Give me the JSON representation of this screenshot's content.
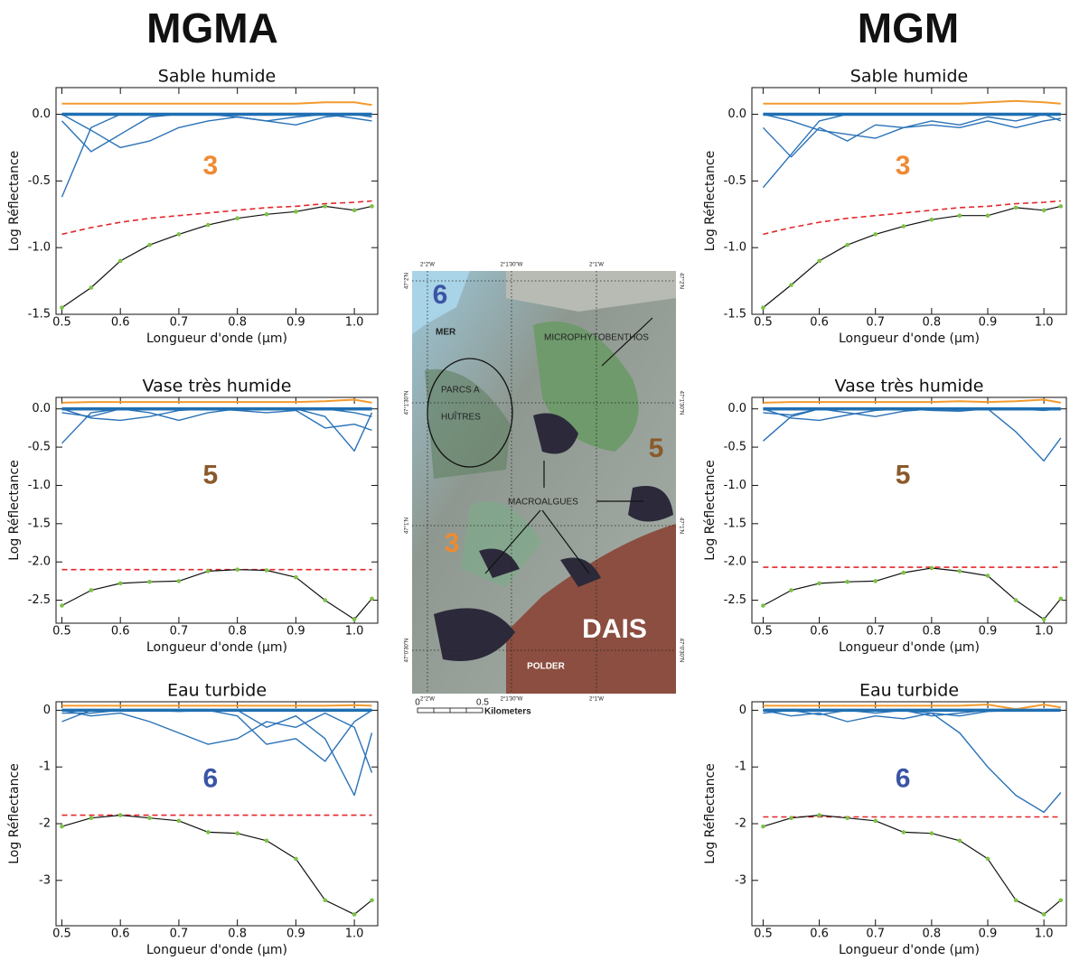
{
  "headings": [
    "MGMA",
    "MGM"
  ],
  "map": {
    "six": "6",
    "mer": "MER",
    "parcs": "PARCS A",
    "huitres": "HUÎTRES",
    "micro": "MICROPHYTOBENTHOS",
    "five": "5",
    "macro": "MACROALGUES",
    "three": "3",
    "dais": "DAIS",
    "polder": "POLDER",
    "lon": [
      "2°2'W",
      "2°1'30\"W",
      "2°1'W"
    ],
    "lat": [
      "47°2'N",
      "47°1'30\"N",
      "47°1'N",
      "47°0'30\"N"
    ],
    "scale": [
      "0",
      "0.5",
      "Kilometers"
    ]
  },
  "chart_data": [
    {
      "type": "line",
      "title": "Sable humide",
      "xlabel": "Longueur d'onde (µm)",
      "ylabel": "Log Réflectance",
      "annotation": {
        "text": "3",
        "color": "#ef8a32"
      },
      "xlim": [
        0.49,
        1.04
      ],
      "ylim": [
        -1.5,
        0.2
      ],
      "xticks": [
        0.5,
        0.6,
        0.7,
        0.8,
        0.9,
        {
          "value": 1,
          "label": "1.0"
        }
      ],
      "yticks": [
        -1.5,
        {
          "value": -1,
          "label": "-1.0"
        },
        -0.5,
        {
          "value": 0,
          "label": "0.0"
        }
      ],
      "x": [
        0.5,
        0.55,
        0.6,
        0.65,
        0.7,
        0.75,
        0.8,
        0.85,
        0.9,
        0.95,
        1.0,
        1.03
      ],
      "series": [
        {
          "color": "#f39a2d",
          "width": 2,
          "values": [
            0.08,
            0.08,
            0.08,
            0.08,
            0.08,
            0.08,
            0.08,
            0.08,
            0.08,
            0.09,
            0.09,
            0.07
          ]
        },
        {
          "color": "#2a72b8",
          "width": 1.4,
          "values": [
            -0.62,
            -0.1,
            0,
            0,
            0,
            0,
            0,
            0,
            0,
            0,
            0,
            0
          ]
        },
        {
          "color": "#2a72b8",
          "width": 1.4,
          "values": [
            -0.05,
            -0.28,
            -0.15,
            -0.02,
            0,
            0,
            -0.02,
            -0.05,
            -0.02,
            0,
            -0.03,
            -0.05
          ]
        },
        {
          "color": "#2a72b8",
          "width": 1.4,
          "values": [
            0,
            -0.12,
            -0.25,
            -0.2,
            -0.1,
            -0.05,
            -0.02,
            -0.05,
            -0.08,
            -0.02,
            0,
            -0.02
          ]
        },
        {
          "color": "#1f6fb2",
          "width": 3.5,
          "values": [
            0,
            0,
            0,
            0,
            0,
            0,
            0,
            0,
            0,
            0,
            0,
            0
          ]
        },
        {
          "color": "#e3262b",
          "width": 1.6,
          "dash": true,
          "values": [
            -0.9,
            -0.85,
            -0.81,
            -0.78,
            -0.76,
            -0.74,
            -0.72,
            -0.7,
            -0.69,
            -0.67,
            -0.66,
            -0.65
          ]
        },
        {
          "color": "#111111",
          "width": 1.2,
          "markers": "#7cc243",
          "values": [
            -1.45,
            -1.3,
            -1.1,
            -0.98,
            -0.9,
            -0.83,
            -0.78,
            -0.75,
            -0.73,
            -0.69,
            -0.72,
            -0.69
          ]
        }
      ]
    },
    {
      "type": "line",
      "title": "Vase très humide",
      "xlabel": "Longueur d'onde (µm)",
      "ylabel": "Log Réflectance",
      "annotation": {
        "text": "5",
        "color": "#8a5a2b"
      },
      "xlim": [
        0.49,
        1.04
      ],
      "ylim": [
        -2.8,
        0.15
      ],
      "xticks": [
        0.5,
        0.6,
        0.7,
        0.8,
        0.9,
        {
          "value": 1,
          "label": "1.0"
        }
      ],
      "yticks": [
        -2.5,
        {
          "value": -2,
          "label": "-2.0"
        },
        -1.5,
        {
          "value": -1,
          "label": "-1.0"
        },
        -0.5,
        {
          "value": 0,
          "label": "0.0"
        }
      ],
      "x": [
        0.5,
        0.55,
        0.6,
        0.65,
        0.7,
        0.75,
        0.8,
        0.85,
        0.9,
        0.95,
        1.0,
        1.03
      ],
      "series": [
        {
          "color": "#f39a2d",
          "width": 2,
          "values": [
            0.08,
            0.09,
            0.09,
            0.09,
            0.09,
            0.09,
            0.09,
            0.09,
            0.09,
            0.1,
            0.12,
            0.08
          ]
        },
        {
          "color": "#2a72b8",
          "width": 1.4,
          "values": [
            -0.45,
            -0.05,
            0,
            0,
            0,
            0,
            0,
            0,
            0,
            -0.1,
            -0.55,
            -0.05
          ]
        },
        {
          "color": "#2a72b8",
          "width": 1.4,
          "values": [
            0,
            -0.12,
            -0.15,
            -0.1,
            -0.02,
            0,
            -0.02,
            -0.05,
            -0.02,
            -0.25,
            -0.2,
            -0.28
          ]
        },
        {
          "color": "#2a72b8",
          "width": 1.4,
          "values": [
            -0.05,
            -0.1,
            0,
            -0.05,
            -0.15,
            -0.05,
            0,
            0,
            0,
            0,
            -0.05,
            -0.1
          ]
        },
        {
          "color": "#1f6fb2",
          "width": 3.5,
          "values": [
            0,
            0,
            0,
            0,
            0,
            0,
            0,
            0,
            0,
            0,
            0,
            0
          ]
        },
        {
          "color": "#e3262b",
          "width": 1.6,
          "dash": true,
          "values": [
            -2.1,
            -2.1,
            -2.1,
            -2.1,
            -2.1,
            -2.1,
            -2.1,
            -2.1,
            -2.1,
            -2.1,
            -2.1,
            -2.1
          ]
        },
        {
          "color": "#111111",
          "width": 1.2,
          "markers": "#7cc243",
          "values": [
            -2.57,
            -2.37,
            -2.28,
            -2.26,
            -2.25,
            -2.12,
            -2.1,
            -2.11,
            -2.2,
            -2.5,
            -2.75,
            -2.48
          ]
        }
      ]
    },
    {
      "type": "line",
      "title": "Eau turbide",
      "xlabel": "Longueur d'onde (µm)",
      "ylabel": "Log Réflectance",
      "annotation": {
        "text": "6",
        "color": "#3a55a5"
      },
      "xlim": [
        0.49,
        1.04
      ],
      "ylim": [
        -3.8,
        0.15
      ],
      "xticks": [
        0.5,
        0.6,
        0.7,
        0.8,
        0.9,
        {
          "value": 1,
          "label": "1.0"
        }
      ],
      "yticks": [
        -3,
        -2,
        -1,
        0
      ],
      "x": [
        0.5,
        0.55,
        0.6,
        0.65,
        0.7,
        0.75,
        0.8,
        0.85,
        0.9,
        0.95,
        1.0,
        1.03
      ],
      "series": [
        {
          "color": "#f39a2d",
          "width": 2,
          "values": [
            0.08,
            0.08,
            0.08,
            0.08,
            0.08,
            0.08,
            0.08,
            0.08,
            0.08,
            0.08,
            0.09,
            0.08
          ]
        },
        {
          "color": "#2a72b8",
          "width": 1.4,
          "values": [
            -0.2,
            0,
            0,
            0,
            0,
            0,
            0,
            -0.3,
            -0.1,
            -0.5,
            -1.5,
            -0.4
          ]
        },
        {
          "color": "#2a72b8",
          "width": 1.4,
          "values": [
            0,
            -0.1,
            -0.05,
            -0.2,
            -0.4,
            -0.6,
            -0.5,
            -0.2,
            -0.3,
            -0.05,
            -0.3,
            -1.1
          ]
        },
        {
          "color": "#2a72b8",
          "width": 1.4,
          "values": [
            -0.05,
            -0.05,
            0,
            0,
            -0.02,
            0,
            -0.1,
            -0.6,
            -0.5,
            -0.9,
            -0.2,
            0
          ]
        },
        {
          "color": "#1f6fb2",
          "width": 3.5,
          "values": [
            0,
            0,
            0,
            0,
            0,
            0,
            0,
            0,
            0,
            0,
            0,
            0
          ]
        },
        {
          "color": "#e3262b",
          "width": 1.6,
          "dash": true,
          "values": [
            -1.85,
            -1.85,
            -1.85,
            -1.85,
            -1.85,
            -1.85,
            -1.85,
            -1.85,
            -1.85,
            -1.85,
            -1.85,
            -1.85
          ]
        },
        {
          "color": "#111111",
          "width": 1.2,
          "markers": "#7cc243",
          "values": [
            -2.05,
            -1.9,
            -1.85,
            -1.9,
            -1.95,
            -2.15,
            -2.17,
            -2.3,
            -2.62,
            -3.35,
            -3.6,
            -3.35
          ]
        }
      ]
    },
    {
      "type": "line",
      "title": "Sable humide",
      "xlabel": "Longueur d'onde (µm)",
      "ylabel": "Log Réflectance",
      "annotation": {
        "text": "3",
        "color": "#ef8a32"
      },
      "xlim": [
        0.48,
        1.04
      ],
      "ylim": [
        -1.5,
        0.2
      ],
      "xticks": [
        0.5,
        0.6,
        0.7,
        0.8,
        0.9,
        {
          "value": 1,
          "label": "1.0"
        }
      ],
      "yticks": [
        -1.5,
        {
          "value": -1,
          "label": "-1.0"
        },
        -0.5,
        {
          "value": 0,
          "label": "0.0"
        }
      ],
      "x": [
        0.5,
        0.55,
        0.6,
        0.65,
        0.7,
        0.75,
        0.8,
        0.85,
        0.9,
        0.95,
        1.0,
        1.03
      ],
      "series": [
        {
          "color": "#f39a2d",
          "width": 2,
          "values": [
            0.08,
            0.08,
            0.08,
            0.08,
            0.08,
            0.08,
            0.08,
            0.08,
            0.09,
            0.1,
            0.09,
            0.08
          ]
        },
        {
          "color": "#2a72b8",
          "width": 1.4,
          "values": [
            -0.55,
            -0.3,
            -0.05,
            0,
            0,
            0,
            0,
            0,
            0,
            0,
            0,
            0
          ]
        },
        {
          "color": "#2a72b8",
          "width": 1.4,
          "values": [
            -0.1,
            -0.32,
            -0.1,
            -0.2,
            -0.08,
            -0.1,
            -0.05,
            -0.08,
            -0.02,
            -0.05,
            0,
            -0.05
          ]
        },
        {
          "color": "#2a72b8",
          "width": 1.4,
          "values": [
            0,
            -0.05,
            -0.12,
            -0.15,
            -0.18,
            -0.1,
            -0.08,
            -0.1,
            -0.05,
            -0.1,
            -0.05,
            -0.03
          ]
        },
        {
          "color": "#1f6fb2",
          "width": 3.5,
          "values": [
            0,
            0,
            0,
            0,
            0,
            0,
            0,
            0,
            0,
            0,
            0,
            0
          ]
        },
        {
          "color": "#e3262b",
          "width": 1.6,
          "dash": true,
          "values": [
            -0.9,
            -0.85,
            -0.81,
            -0.78,
            -0.76,
            -0.74,
            -0.72,
            -0.7,
            -0.69,
            -0.67,
            -0.66,
            -0.65
          ]
        },
        {
          "color": "#111111",
          "width": 1.2,
          "markers": "#7cc243",
          "values": [
            -1.45,
            -1.28,
            -1.1,
            -0.98,
            -0.9,
            -0.84,
            -0.79,
            -0.76,
            -0.76,
            -0.7,
            -0.72,
            -0.69
          ]
        }
      ]
    },
    {
      "type": "line",
      "title": "Vase très humide",
      "xlabel": "Longueur d'onde (µm)",
      "ylabel": "Log Réflectance",
      "annotation": {
        "text": "5",
        "color": "#8a5a2b"
      },
      "xlim": [
        0.48,
        1.04
      ],
      "ylim": [
        -2.8,
        0.15
      ],
      "xticks": [
        0.5,
        0.6,
        0.7,
        0.8,
        0.9,
        {
          "value": 1,
          "label": "1.0"
        }
      ],
      "yticks": [
        -2.5,
        {
          "value": -2,
          "label": "-2.0"
        },
        -1.5,
        {
          "value": -1,
          "label": "-1.0"
        },
        -0.5,
        {
          "value": 0,
          "label": "0.0"
        }
      ],
      "x": [
        0.5,
        0.55,
        0.6,
        0.65,
        0.7,
        0.75,
        0.8,
        0.85,
        0.9,
        0.95,
        1.0,
        1.03
      ],
      "series": [
        {
          "color": "#f39a2d",
          "width": 2,
          "values": [
            0.08,
            0.09,
            0.09,
            0.09,
            0.09,
            0.09,
            0.09,
            0.1,
            0.09,
            0.1,
            0.12,
            0.08
          ]
        },
        {
          "color": "#2a72b8",
          "width": 1.4,
          "values": [
            -0.42,
            -0.1,
            0,
            0,
            0,
            0,
            0,
            0,
            0,
            -0.3,
            -0.68,
            -0.38
          ]
        },
        {
          "color": "#2a72b8",
          "width": 1.4,
          "values": [
            0,
            -0.12,
            -0.15,
            -0.08,
            -0.02,
            0,
            -0.02,
            -0.03,
            0,
            0,
            0,
            0
          ]
        },
        {
          "color": "#2a72b8",
          "width": 1.4,
          "values": [
            -0.05,
            -0.08,
            0,
            -0.05,
            -0.1,
            -0.03,
            0,
            0,
            0,
            0,
            -0.02,
            0
          ]
        },
        {
          "color": "#1f6fb2",
          "width": 3.5,
          "values": [
            0,
            0,
            0,
            0,
            0,
            0,
            0,
            0,
            0,
            0,
            0,
            0
          ]
        },
        {
          "color": "#e3262b",
          "width": 1.6,
          "dash": true,
          "values": [
            -2.07,
            -2.07,
            -2.07,
            -2.07,
            -2.07,
            -2.07,
            -2.07,
            -2.07,
            -2.07,
            -2.07,
            -2.07,
            -2.07
          ]
        },
        {
          "color": "#111111",
          "width": 1.2,
          "markers": "#7cc243",
          "values": [
            -2.57,
            -2.37,
            -2.28,
            -2.26,
            -2.25,
            -2.14,
            -2.08,
            -2.12,
            -2.18,
            -2.5,
            -2.75,
            -2.48
          ]
        }
      ]
    },
    {
      "type": "line",
      "title": "Eau turbide",
      "xlabel": "Longueur d'onde (µm)",
      "ylabel": "Log Réflectance",
      "annotation": {
        "text": "6",
        "color": "#3a55a5"
      },
      "xlim": [
        0.48,
        1.04
      ],
      "ylim": [
        -3.8,
        0.15
      ],
      "xticks": [
        0.5,
        0.6,
        0.7,
        0.8,
        0.9,
        {
          "value": 1,
          "label": "1.0"
        }
      ],
      "yticks": [
        -3,
        -2,
        -1,
        0
      ],
      "x": [
        0.5,
        0.55,
        0.6,
        0.65,
        0.7,
        0.75,
        0.8,
        0.85,
        0.9,
        0.95,
        1.0,
        1.03
      ],
      "series": [
        {
          "color": "#f39a2d",
          "width": 2,
          "values": [
            0.08,
            0.08,
            0.08,
            0.08,
            0.08,
            0.08,
            0.08,
            0.08,
            0.1,
            0.02,
            0.1,
            0.05
          ]
        },
        {
          "color": "#2a72b8",
          "width": 1.4,
          "values": [
            0,
            0,
            0,
            0,
            0,
            0,
            -0.05,
            -0.4,
            -1.0,
            -1.5,
            -1.8,
            -1.45
          ]
        },
        {
          "color": "#2a72b8",
          "width": 1.4,
          "values": [
            0,
            -0.1,
            -0.05,
            -0.2,
            -0.1,
            -0.15,
            -0.05,
            -0.1,
            -0.02,
            0,
            0,
            0
          ]
        },
        {
          "color": "#2a72b8",
          "width": 1.4,
          "values": [
            -0.05,
            0,
            -0.08,
            0,
            -0.05,
            0,
            -0.1,
            -0.05,
            0,
            0,
            0,
            0
          ]
        },
        {
          "color": "#1f6fb2",
          "width": 3.5,
          "values": [
            0,
            0,
            0,
            0,
            0,
            0,
            0,
            0,
            0,
            0,
            0,
            0
          ]
        },
        {
          "color": "#e3262b",
          "width": 1.6,
          "dash": true,
          "values": [
            -1.88,
            -1.88,
            -1.88,
            -1.88,
            -1.88,
            -1.88,
            -1.88,
            -1.88,
            -1.88,
            -1.88,
            -1.88,
            -1.88
          ]
        },
        {
          "color": "#111111",
          "width": 1.2,
          "markers": "#7cc243",
          "values": [
            -2.05,
            -1.9,
            -1.85,
            -1.9,
            -1.95,
            -2.15,
            -2.17,
            -2.3,
            -2.62,
            -3.35,
            -3.6,
            -3.35
          ]
        }
      ]
    }
  ]
}
